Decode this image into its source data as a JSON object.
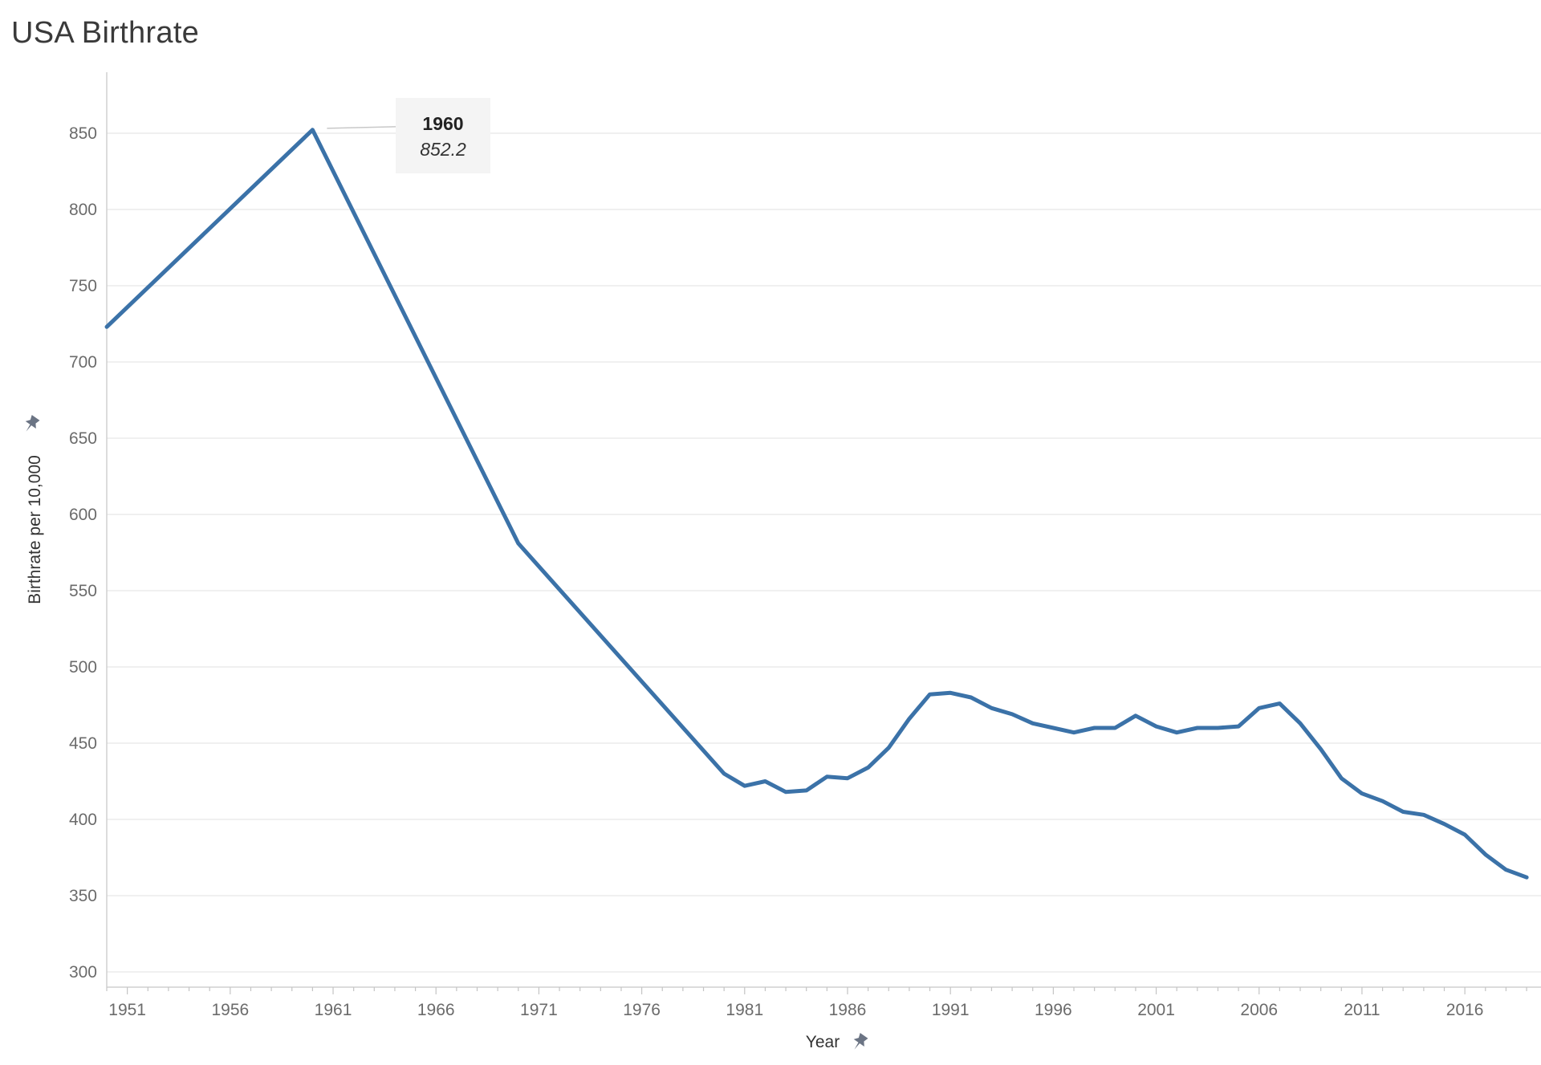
{
  "page": {
    "title": "USA Birthrate"
  },
  "colors": {
    "line": "#3b72a8",
    "grid": "#ebebeb",
    "axis": "#d0d0d0",
    "pin": "#6b7484",
    "tooltip_bg": "#f4f4f4"
  },
  "chart_data": {
    "type": "line",
    "title": "USA Birthrate",
    "xlabel": "Year",
    "ylabel": "Birthrate per 10,000",
    "xlim": [
      1950,
      2019.7
    ],
    "ylim": [
      290,
      890
    ],
    "yticks": [
      300,
      350,
      400,
      450,
      500,
      550,
      600,
      650,
      700,
      750,
      800,
      850
    ],
    "xticks": [
      1951,
      1956,
      1961,
      1966,
      1971,
      1976,
      1981,
      1986,
      1991,
      1996,
      2001,
      2006,
      2011,
      2016
    ],
    "grid": true,
    "series": [
      {
        "x": [
          1950,
          1960,
          1970,
          1980,
          1981,
          1982,
          1983,
          1984,
          1985,
          1986,
          1987,
          1988,
          1989,
          1990,
          1991,
          1992,
          1993,
          1994,
          1995,
          1996,
          1997,
          1998,
          1999,
          2000,
          2001,
          2002,
          2003,
          2004,
          2005,
          2006,
          2007,
          2008,
          2009,
          2010,
          2011,
          2012,
          2013,
          2014,
          2015,
          2016,
          2017,
          2018,
          2019
        ],
        "y": [
          723,
          852.2,
          581,
          430,
          422,
          425,
          418,
          419,
          428,
          427,
          434,
          447,
          466,
          482,
          483,
          480,
          473,
          469,
          463,
          460,
          457,
          460,
          460,
          468,
          461,
          457,
          460,
          460,
          461,
          473,
          476,
          463,
          446,
          427,
          417,
          412,
          405,
          403,
          397,
          390,
          377,
          367,
          362
        ]
      }
    ],
    "annotation": {
      "year": "1960",
      "value": "852.2",
      "x": 1960,
      "y": 852.2
    }
  }
}
